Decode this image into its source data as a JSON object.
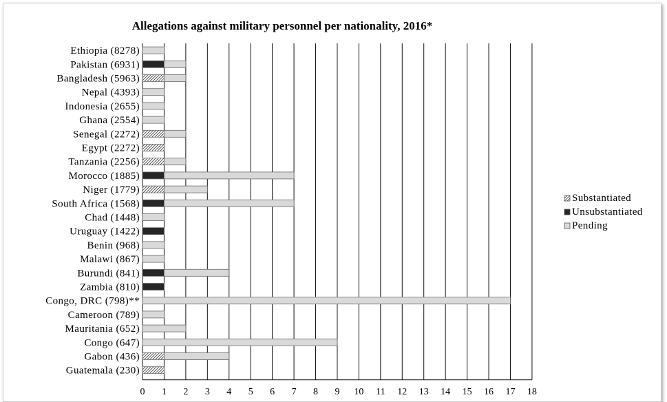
{
  "chart_data": {
    "type": "bar",
    "orientation": "horizontal",
    "stacked": true,
    "title": "Allegations against military  personnel per nationality,  2016*",
    "xlabel": "",
    "ylabel": "",
    "xlim": [
      0,
      18
    ],
    "x_ticks": [
      0,
      1,
      2,
      3,
      4,
      5,
      6,
      7,
      8,
      9,
      10,
      11,
      12,
      13,
      14,
      15,
      16,
      17,
      18
    ],
    "grid": "vertical",
    "legend_position": "right",
    "categories": [
      "Ethiopia (8278)",
      "Pakistan (6931)",
      "Bangladesh (5963)",
      "Nepal (4393)",
      "Indonesia (2655)",
      "Ghana (2554)",
      "Senegal (2272)",
      "Egypt (2272)",
      "Tanzania (2256)",
      "Morocco (1885)",
      "Niger (1779)",
      "South Africa (1568)",
      "Chad (1448)",
      "Uruguay (1422)",
      "Benin (968)",
      "Malawi (867)",
      "Burundi (841)",
      "Zambia (810)",
      "Congo, DRC (798)**",
      "Cameroon (789)",
      "Mauritania (652)",
      "Congo (647)",
      "Gabon (436)",
      "Guatemala (230)"
    ],
    "series": [
      {
        "name": "Substantiated",
        "color": "#ffffff",
        "pattern": "hatch",
        "values": [
          0,
          0,
          1,
          0,
          0,
          0,
          1,
          1,
          1,
          0,
          1,
          0,
          0,
          0,
          0,
          0,
          0,
          0,
          0,
          0,
          0,
          0,
          1,
          1
        ]
      },
      {
        "name": "Unsubstantiated",
        "color": "#262626",
        "pattern": "solid",
        "values": [
          0,
          1,
          0,
          0,
          0,
          0,
          0,
          0,
          0,
          1,
          0,
          1,
          0,
          1,
          0,
          0,
          1,
          1,
          0,
          0,
          0,
          0,
          0,
          0
        ]
      },
      {
        "name": "Pending",
        "color": "#d9d9d9",
        "pattern": "solid",
        "values": [
          1,
          1,
          1,
          1,
          1,
          1,
          1,
          0,
          1,
          6,
          2,
          6,
          1,
          0,
          1,
          1,
          3,
          0,
          17,
          1,
          2,
          9,
          3,
          0
        ]
      }
    ]
  }
}
